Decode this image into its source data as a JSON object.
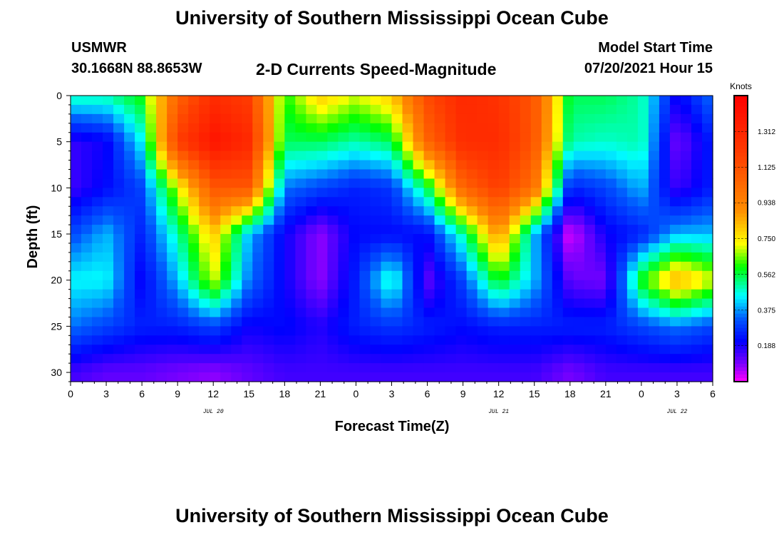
{
  "header": {
    "title": "University of Southern Mississippi Ocean Cube",
    "station": "USMWR",
    "coordinates": "30.1668N  88.8653W",
    "subtitle": "2-D Currents Speed-Magnitude",
    "model_start_label": "Model Start Time",
    "model_start_value": "07/20/2021 Hour 15"
  },
  "footer": {
    "title": "University of Southern Mississippi Ocean Cube"
  },
  "chart_data": {
    "type": "heatmap",
    "title": "2-D Currents Speed-Magnitude",
    "xlabel": "Forecast Time(Z)",
    "ylabel": "Depth (ft)",
    "x_ticks": [
      "0",
      "3",
      "6",
      "9",
      "12",
      "15",
      "18",
      "21",
      "0",
      "3",
      "6",
      "9",
      "12",
      "15",
      "18",
      "21",
      "0",
      "3",
      "6"
    ],
    "x_range_hours": [
      0,
      54
    ],
    "day_labels": [
      {
        "label": "JUL 20",
        "hour": 12
      },
      {
        "label": "JUL 21",
        "hour": 36
      },
      {
        "label": "JUL 22",
        "hour": 51
      }
    ],
    "y_ticks": [
      0,
      5,
      10,
      15,
      20,
      25,
      30
    ],
    "ylim": [
      0,
      31
    ],
    "y_inverted": true,
    "colorbar": {
      "title": "Knots",
      "ticks": [
        "0.188",
        "0.375",
        "0.562",
        "0.750",
        "0.938",
        "1.125",
        "1.312"
      ],
      "range": [
        0,
        1.5
      ]
    },
    "grid_hours": [
      0,
      3,
      6,
      9,
      12,
      15,
      18,
      21,
      24,
      27,
      30,
      33,
      36,
      39,
      42,
      45,
      48,
      51,
      54
    ],
    "grid_depths": [
      0,
      5,
      10,
      15,
      20,
      25,
      30
    ],
    "values": [
      [
        0.5,
        0.5,
        0.6,
        1.05,
        1.28,
        1.2,
        0.6,
        0.8,
        0.7,
        0.8,
        1.15,
        1.3,
        1.25,
        1.1,
        0.55,
        0.55,
        0.5,
        0.2,
        0.35
      ],
      [
        0.16,
        0.2,
        0.45,
        1.2,
        1.4,
        1.3,
        0.55,
        0.55,
        0.5,
        0.55,
        1.05,
        1.28,
        1.28,
        1.1,
        0.5,
        0.48,
        0.5,
        0.1,
        0.25
      ],
      [
        0.15,
        0.22,
        0.3,
        0.7,
        1.1,
        1.1,
        0.35,
        0.3,
        0.25,
        0.28,
        0.55,
        1.05,
        1.2,
        1.0,
        0.25,
        0.3,
        0.4,
        0.15,
        0.25
      ],
      [
        0.3,
        0.4,
        0.25,
        0.5,
        0.8,
        0.4,
        0.2,
        0.08,
        0.22,
        0.22,
        0.22,
        0.5,
        0.9,
        0.4,
        0.02,
        0.2,
        0.25,
        0.4,
        0.4
      ],
      [
        0.45,
        0.45,
        0.2,
        0.4,
        0.7,
        0.35,
        0.2,
        0.08,
        0.25,
        0.5,
        0.12,
        0.3,
        0.6,
        0.4,
        0.12,
        0.1,
        0.6,
        0.85,
        0.7
      ],
      [
        0.35,
        0.3,
        0.25,
        0.25,
        0.3,
        0.2,
        0.22,
        0.18,
        0.25,
        0.28,
        0.25,
        0.22,
        0.25,
        0.25,
        0.25,
        0.25,
        0.3,
        0.35,
        0.3
      ],
      [
        0.15,
        0.12,
        0.12,
        0.1,
        0.08,
        0.12,
        0.15,
        0.15,
        0.15,
        0.15,
        0.15,
        0.15,
        0.15,
        0.15,
        0.1,
        0.15,
        0.15,
        0.15,
        0.15
      ]
    ]
  }
}
